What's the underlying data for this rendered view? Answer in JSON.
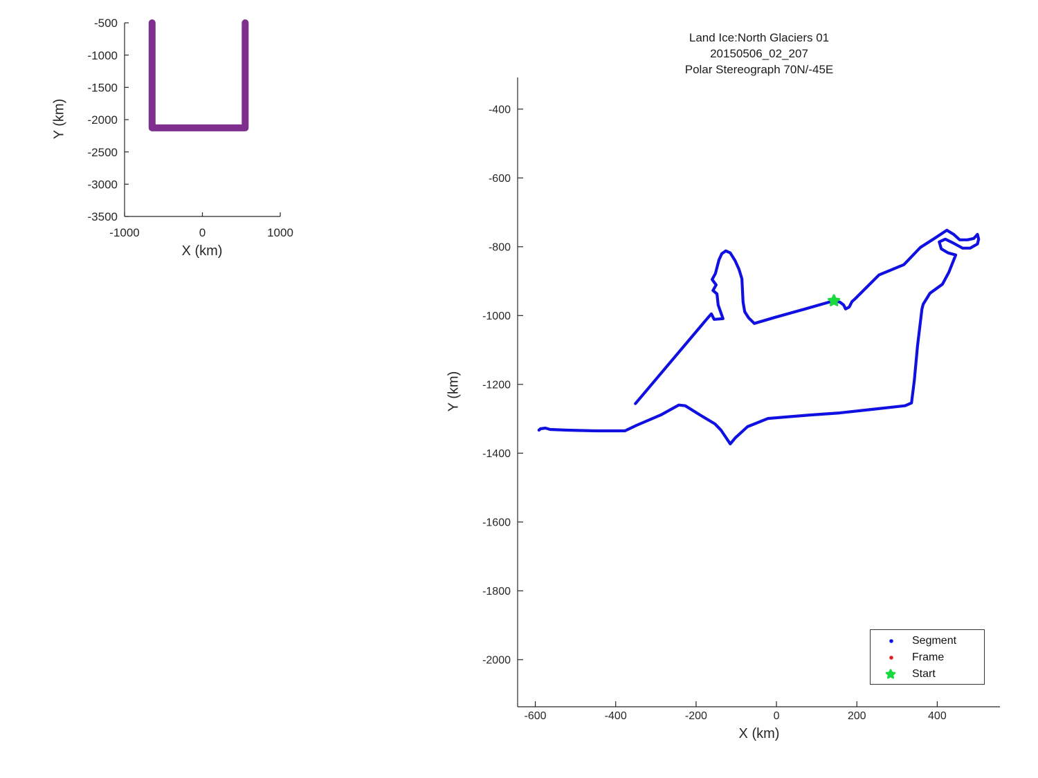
{
  "overview_plot": {
    "xlabel": "X (km)",
    "ylabel": "Y (km)"
  },
  "detail_plot": {
    "title_line1": "Land Ice:North Glaciers 01",
    "title_line2": "20150506_02_207",
    "title_line3": "Polar Stereograph 70N/-45E",
    "xlabel": "X (km)",
    "ylabel": "Y (km)",
    "legend": {
      "items": [
        {
          "label": "Segment",
          "marker": "dot",
          "color": "#1010E0"
        },
        {
          "label": "Frame",
          "marker": "dot",
          "color": "#E02020"
        },
        {
          "label": "Start",
          "marker": "pentagram",
          "color": "#19D93E"
        }
      ]
    }
  },
  "colors": {
    "track_blue": "#1010E0",
    "track_purple": "#7E2F8E",
    "start_green": "#19D93E",
    "frame_red": "#E02020",
    "axis_gray": "#262626"
  },
  "chart_data": [
    {
      "id": "overview",
      "type": "line",
      "title": "",
      "xlabel": "X (km)",
      "ylabel": "Y (km)",
      "xlim": [
        -1000,
        1000
      ],
      "ylim": [
        -3500,
        -500
      ],
      "xticks": [
        -1000,
        0,
        1000
      ],
      "yticks": [
        -3500,
        -3000,
        -2500,
        -2000,
        -1500,
        -1000,
        -500
      ],
      "grid": false,
      "legend_position": "none",
      "series": [
        {
          "name": "track-overview",
          "color": "#7E2F8E",
          "width": 10,
          "points": [
            [
              -646,
              -500
            ],
            [
              -646,
              -2128
            ],
            [
              549,
              -2128
            ],
            [
              549,
              -500
            ]
          ]
        }
      ],
      "markers": []
    },
    {
      "id": "detail",
      "type": "line",
      "title": "Land Ice:North Glaciers 01 / 20150506_02_207 / Polar Stereograph 70N/-45E",
      "xlabel": "X (km)",
      "ylabel": "Y (km)",
      "xlim": [
        -644,
        556
      ],
      "ylim": [
        -2137,
        -308
      ],
      "xticks": [
        -600,
        -400,
        -200,
        0,
        200,
        400
      ],
      "yticks": [
        -2000,
        -1800,
        -1600,
        -1400,
        -1200,
        -1000,
        -800,
        -600,
        -400
      ],
      "grid": false,
      "legend_position": "lower-right-inside",
      "series": [
        {
          "name": "Segment",
          "color": "#1010E0",
          "width": 4.2,
          "points": [
            [
              -351,
              -1256
            ],
            [
              -171,
              -1007
            ],
            [
              -162,
              -995
            ],
            [
              -155,
              -1011
            ],
            [
              -133,
              -1009
            ],
            [
              -145,
              -969
            ],
            [
              -148,
              -937
            ],
            [
              -158,
              -927
            ],
            [
              -150,
              -911
            ],
            [
              -160,
              -895
            ],
            [
              -152,
              -878
            ],
            [
              -143,
              -838
            ],
            [
              -136,
              -820
            ],
            [
              -126,
              -812
            ],
            [
              -115,
              -818
            ],
            [
              -103,
              -840
            ],
            [
              -93,
              -866
            ],
            [
              -86,
              -893
            ],
            [
              -83,
              -961
            ],
            [
              -79,
              -989
            ],
            [
              -69,
              -1007
            ],
            [
              -55,
              -1023
            ],
            [
              -3,
              -1005
            ],
            [
              65,
              -983
            ],
            [
              143,
              -957
            ],
            [
              158,
              -961
            ],
            [
              167,
              -969
            ],
            [
              172,
              -981
            ],
            [
              181,
              -975
            ],
            [
              188,
              -959
            ],
            [
              196,
              -951
            ],
            [
              255,
              -882
            ],
            [
              317,
              -852
            ],
            [
              358,
              -802
            ],
            [
              393,
              -776
            ],
            [
              424,
              -752
            ],
            [
              441,
              -764
            ],
            [
              456,
              -780
            ],
            [
              475,
              -780
            ],
            [
              491,
              -776
            ],
            [
              500,
              -764
            ],
            [
              503,
              -778
            ],
            [
              500,
              -792
            ],
            [
              482,
              -804
            ],
            [
              463,
              -804
            ],
            [
              441,
              -790
            ],
            [
              420,
              -778
            ],
            [
              405,
              -786
            ],
            [
              410,
              -806
            ],
            [
              427,
              -818
            ],
            [
              446,
              -824
            ],
            [
              429,
              -874
            ],
            [
              413,
              -909
            ],
            [
              382,
              -935
            ],
            [
              365,
              -967
            ],
            [
              362,
              -981
            ],
            [
              351,
              -1088
            ],
            [
              343,
              -1188
            ],
            [
              336,
              -1254
            ],
            [
              320,
              -1262
            ],
            [
              243,
              -1272
            ],
            [
              157,
              -1283
            ],
            [
              83,
              -1289
            ],
            [
              -21,
              -1299
            ],
            [
              -72,
              -1323
            ],
            [
              -102,
              -1355
            ],
            [
              -115,
              -1373
            ],
            [
              -138,
              -1333
            ],
            [
              -153,
              -1315
            ],
            [
              -193,
              -1287
            ],
            [
              -227,
              -1262
            ],
            [
              -243,
              -1260
            ],
            [
              -288,
              -1289
            ],
            [
              -348,
              -1319
            ],
            [
              -377,
              -1335
            ],
            [
              -451,
              -1335
            ],
            [
              -520,
              -1333
            ],
            [
              -563,
              -1331
            ],
            [
              -575,
              -1327
            ],
            [
              -587,
              -1329
            ],
            [
              -591,
              -1333
            ]
          ]
        }
      ],
      "markers": [
        {
          "name": "Start",
          "shape": "pentagram",
          "color": "#19D93E",
          "x": 143,
          "y": -957,
          "size": 8
        }
      ]
    }
  ]
}
